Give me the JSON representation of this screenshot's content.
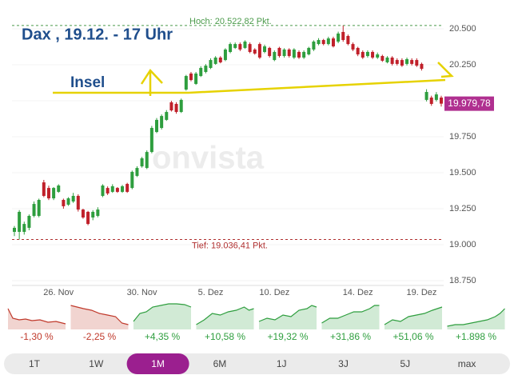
{
  "chart_data": {
    "type": "candlestick",
    "title": "Dax , 19.12. - 17 Uhr",
    "annotation": "Insel",
    "watermark": "onvista",
    "up_color": "#2e9e3e",
    "down_color": "#c0202a",
    "categories": [
      null,
      null,
      null,
      null,
      null,
      null,
      null,
      null,
      null,
      "26. Nov",
      null,
      null,
      null,
      null,
      null,
      null,
      null,
      null,
      null,
      null,
      null,
      null,
      null,
      null,
      null,
      null,
      "30. Nov",
      null,
      null,
      null,
      null,
      null,
      null,
      null,
      null,
      null,
      null,
      null,
      null,
      null,
      "5. Dez",
      null,
      null,
      null,
      null,
      null,
      null,
      null,
      null,
      null,
      null,
      null,
      null,
      "10. Dez",
      null,
      null,
      null,
      null,
      null,
      null,
      null,
      null,
      null,
      null,
      null,
      null,
      null,
      null,
      null,
      null,
      "14. Dez",
      null,
      null,
      null,
      null,
      null,
      null,
      null,
      null,
      null,
      null,
      null,
      null,
      "19. Dez",
      null,
      null,
      null,
      null
    ],
    "open": [
      19089,
      19089,
      19089,
      19117,
      19200,
      19200,
      19433,
      19394,
      19322,
      19367,
      19311,
      19278,
      19300,
      19339,
      19244,
      19228,
      19189,
      19200,
      19339,
      19394,
      19367,
      19394,
      19367,
      19422,
      19394,
      19478,
      19544,
      19533,
      19644,
      19783,
      19811,
      19867,
      19989,
      19978,
      19922,
      20078,
      20189,
      20117,
      20172,
      20200,
      20228,
      20256,
      20300,
      20283,
      20339,
      20367,
      20394,
      20367,
      20394,
      20356,
      20394,
      20339,
      20367,
      20283,
      20367,
      20311,
      20356,
      20300,
      20339,
      20300,
      20322,
      20356,
      20394,
      20422,
      20394,
      20433,
      20411,
      20478,
      20450,
      20394,
      20367,
      20339,
      20311,
      20339,
      20300,
      20311,
      20267,
      20300,
      20283,
      20283,
      20256,
      20283,
      20283,
      20256,
      20006,
      20022,
      20006,
      20022
    ],
    "high": [
      19130,
      19240,
      19160,
      19210,
      19300,
      19320,
      19450,
      19410,
      19400,
      19420,
      19320,
      19330,
      19360,
      19350,
      19250,
      19235,
      19240,
      19260,
      19420,
      19405,
      19420,
      19400,
      19415,
      19430,
      19515,
      19545,
      19610,
      19655,
      19825,
      19880,
      19905,
      19935,
      20000,
      19990,
      20015,
      20180,
      20200,
      20200,
      20240,
      20255,
      20295,
      20310,
      20310,
      20365,
      20405,
      20405,
      20405,
      20420,
      20405,
      20365,
      20405,
      20390,
      20375,
      20350,
      20375,
      20365,
      20365,
      20365,
      20350,
      20350,
      20375,
      20420,
      20435,
      20430,
      20445,
      20445,
      20480,
      20522.82,
      20460,
      20405,
      20375,
      20350,
      20350,
      20350,
      20335,
      20320,
      20310,
      20310,
      20295,
      20295,
      20300,
      20295,
      20295,
      20265,
      20080,
      20035,
      20060,
      20035
    ],
    "low": [
      19060,
      19036.41,
      19070,
      19100,
      19190,
      19190,
      19330,
      19310,
      19310,
      19360,
      19250,
      19270,
      19290,
      19230,
      19180,
      19135,
      19170,
      19190,
      19330,
      19345,
      19360,
      19360,
      19360,
      19360,
      19385,
      19470,
      19535,
      19525,
      19635,
      19775,
      19800,
      19860,
      19925,
      19910,
      19915,
      20070,
      20135,
      20110,
      20165,
      20190,
      20220,
      20250,
      20260,
      20275,
      20330,
      20360,
      20345,
      20360,
      20330,
      20320,
      20290,
      20330,
      20300,
      20275,
      20300,
      20300,
      20300,
      20290,
      20290,
      20290,
      20315,
      20345,
      20385,
      20385,
      20385,
      20370,
      20400,
      20410,
      20385,
      20345,
      20310,
      20290,
      20300,
      20290,
      20290,
      20270,
      20260,
      20245,
      20245,
      20235,
      20245,
      20245,
      20235,
      20210,
      19995,
      19965,
      19995,
      19960
    ],
    "close": [
      19117,
      19228,
      19144,
      19200,
      19283,
      19311,
      19339,
      19322,
      19394,
      19411,
      19267,
      19322,
      19339,
      19244,
      19189,
      19144,
      19228,
      19244,
      19411,
      19356,
      19406,
      19367,
      19406,
      19367,
      19506,
      19533,
      19600,
      19644,
      19811,
      19867,
      19894,
      19922,
      19933,
      19922,
      20006,
      20172,
      20144,
      20189,
      20228,
      20244,
      20283,
      20300,
      20267,
      20356,
      20394,
      20394,
      20356,
      20411,
      20339,
      20328,
      20300,
      20378,
      20311,
      20339,
      20311,
      20356,
      20311,
      20356,
      20300,
      20339,
      20367,
      20411,
      20422,
      20394,
      20433,
      20378,
      20467,
      20422,
      20394,
      20356,
      20322,
      20300,
      20339,
      20300,
      20322,
      20278,
      20300,
      20256,
      20256,
      20244,
      20289,
      20256,
      20244,
      20222,
      20061,
      19978,
      20044,
      19979.78
    ],
    "last_close_label": "19.979,78",
    "high_line": {
      "value": 20522.82,
      "label": "Hoch: 20.522,82 Pkt."
    },
    "low_line": {
      "value": 19036.41,
      "label": "Tief: 19.036,41 Pkt."
    },
    "ylim": [
      18700,
      20600
    ],
    "yticks": [
      {
        "value": 18750,
        "label": "18.750"
      },
      {
        "value": 19000,
        "label": "19.000"
      },
      {
        "value": 19250,
        "label": "19.250"
      },
      {
        "value": 19500,
        "label": "19.500"
      },
      {
        "value": 19750,
        "label": "19.750"
      },
      {
        "value": 20000,
        "label": "20.000"
      },
      {
        "value": 20250,
        "label": "20.250"
      },
      {
        "value": 20500,
        "label": "20.500"
      }
    ],
    "grid": true
  },
  "performance": [
    {
      "change": "-1,30 %",
      "color": "#c0392b"
    },
    {
      "change": "-2,25 %",
      "color": "#c0392b"
    },
    {
      "change": "+4,35 %",
      "color": "#2e9e3e"
    },
    {
      "change": "+10,58 %",
      "color": "#2e9e3e"
    },
    {
      "change": "+19,32 %",
      "color": "#2e9e3e"
    },
    {
      "change": "+31,86 %",
      "color": "#2e9e3e"
    },
    {
      "change": "+51,06 %",
      "color": "#2e9e3e"
    },
    {
      "change": "+1.898 %",
      "color": "#2e9e3e"
    }
  ],
  "tabs": {
    "items": [
      "1T",
      "1W",
      "1M",
      "6M",
      "1J",
      "3J",
      "5J",
      "max"
    ],
    "active": 2
  }
}
